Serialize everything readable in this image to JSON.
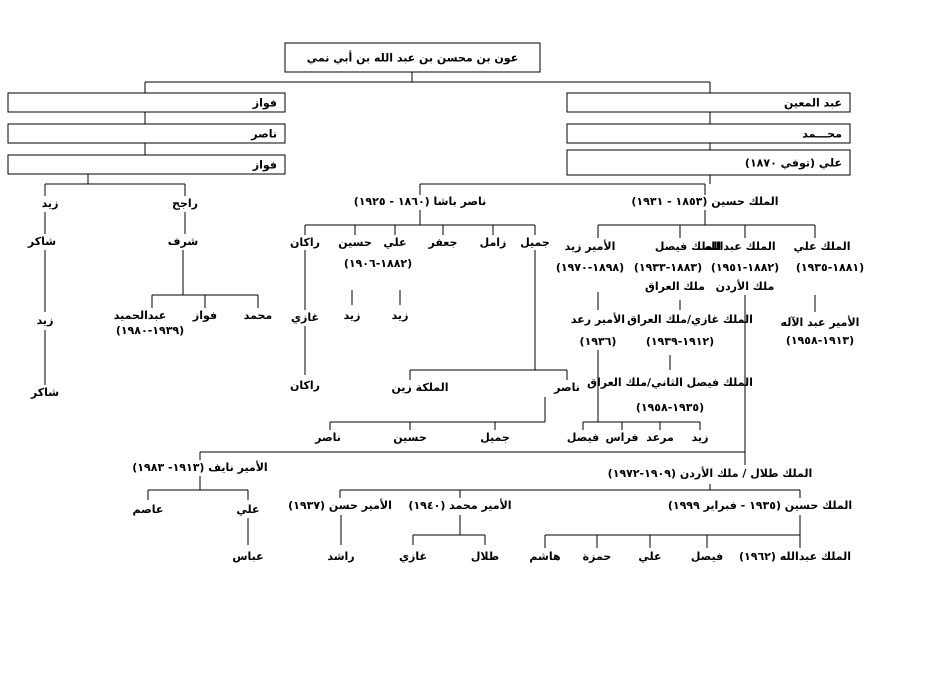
{
  "boxes": [
    "عون بن محسن بن عبد الله بن أبي نمي",
    "فواز",
    "ناصر",
    "فواز",
    "عبد المعين",
    "محـــمد",
    "علي (توفي ١٨٧٠)"
  ],
  "labels": [
    "زيد",
    "راجح",
    "شاكر",
    "شرف",
    "زيد",
    "شاكر",
    "محمد",
    "فواز",
    "عبدالحميد",
    "(١٩٣٩-١٩٨٠)",
    "ناصر باشا (١٨٦٠ - ١٩٢٥)",
    "الملك حسين (١٨٥٣ - ١٩٣١)",
    "جميل",
    "زامل",
    "جعفر",
    "علي",
    "حسين",
    "راكان",
    "(١٨٨٢-١٩٠٦)",
    "غازي",
    "زيد",
    "زيد",
    "راكان",
    "الأمير زيد",
    "الملك فيصل",
    "الملك عبدالله",
    "الملك علي",
    "(١٨٩٨-١٩٧٠)",
    "(١٨٨٣-١٩٣٣)",
    "(١٨٨٢-١٩٥١)",
    "(١٨٨١-١٩٣٥)",
    "ملك العراق",
    "ملك الأردن",
    "الأمير رعد",
    "(١٩٣٦)",
    "الملك غازي/ملك العراق",
    "(١٩١٢-١٩٣٩)",
    "الأمير عبد الآله",
    "(١٩١٣-١٩٥٨)",
    "الملك فيصل الثاني/ملك العراق",
    "(١٩٣٥-١٩٥٨)",
    "الملكة زين",
    "ناصر",
    "ناصر",
    "حسين",
    "جميل",
    "فيصل",
    "فراس",
    "مرعد",
    "زيد",
    "الأمير نايف (١٩١٣- ١٩٨٣)",
    "الملك طلال / ملك الأردن (١٩٠٩-١٩٧٢)",
    "عاصم",
    "علي",
    "الأمير حسن (١٩٣٧)",
    "الأمير محمد (١٩٤٠)",
    "الملك حسين (١٩٣٥ - فبراير ١٩٩٩)",
    "عباس",
    "راشد",
    "غازي",
    "طلال",
    "هاشم",
    "حمزة",
    "علي",
    "فيصل",
    "الملك عبدالله (١٩٦٢)"
  ]
}
